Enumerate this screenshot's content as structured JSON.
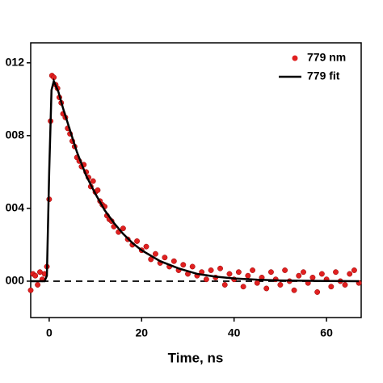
{
  "chart_data": {
    "type": "scatter",
    "xlabel": "Time, ns",
    "xlim": [
      -4,
      67.5
    ],
    "xticks": [
      0,
      20,
      40,
      60
    ],
    "ylim": [
      -0.002,
      0.0131
    ],
    "yticks": [
      {
        "value": 0,
        "label": "000"
      },
      {
        "value": 0.004,
        "label": "004"
      },
      {
        "value": 0.008,
        "label": "008"
      },
      {
        "value": 0.012,
        "label": "012"
      }
    ],
    "reference_line": {
      "value": 0,
      "style": "dashed"
    },
    "legend": "upper right",
    "series": [
      {
        "name": "779 nm",
        "type": "scatter",
        "color": "#e02020",
        "x": [
          -4,
          -3.5,
          -3,
          -2.5,
          -2,
          -1.5,
          -1,
          -0.5,
          0,
          0.3,
          0.6,
          1,
          1.4,
          1.8,
          2.2,
          2.6,
          3,
          3.5,
          4,
          4.5,
          5,
          5.5,
          6,
          6.5,
          7,
          7.5,
          8,
          8.5,
          9,
          9.5,
          10,
          10.5,
          11,
          11.5,
          12,
          12.5,
          13,
          13.5,
          14,
          15,
          16,
          17,
          18,
          19,
          20,
          21,
          22,
          23,
          24,
          25,
          26,
          27,
          28,
          29,
          30,
          31,
          32,
          33,
          34,
          35,
          36,
          37,
          38,
          39,
          40,
          41,
          42,
          43,
          44,
          45,
          46,
          47,
          48,
          49,
          50,
          51,
          52,
          53,
          54,
          55,
          56,
          57,
          58,
          59,
          60,
          61,
          62,
          63,
          64,
          65,
          66,
          67
        ],
        "values": [
          -0.0005,
          0.0004,
          0.0003,
          -0.0002,
          0.0005,
          0.0001,
          0.0004,
          0.0008,
          0.0045,
          0.0088,
          0.0113,
          0.0112,
          0.0108,
          0.0106,
          0.0101,
          0.0098,
          0.0092,
          0.009,
          0.0084,
          0.0081,
          0.0077,
          0.0074,
          0.0068,
          0.0066,
          0.0063,
          0.0064,
          0.006,
          0.0057,
          0.0052,
          0.0055,
          0.0049,
          0.005,
          0.0044,
          0.0042,
          0.0041,
          0.0036,
          0.0034,
          0.0033,
          0.003,
          0.0027,
          0.0029,
          0.0023,
          0.002,
          0.0022,
          0.0017,
          0.0019,
          0.0012,
          0.0015,
          0.001,
          0.0013,
          0.0008,
          0.0011,
          0.0006,
          0.0009,
          0.0004,
          0.0008,
          0.0003,
          0.0005,
          0.0001,
          0.0006,
          0.0002,
          0.0007,
          -0.0002,
          0.0004,
          0.0001,
          0.0005,
          -0.0003,
          0.0003,
          0.0006,
          -0.0001,
          0.0002,
          -0.0004,
          0.0005,
          0.0001,
          -0.0002,
          0.0006,
          0,
          -0.0005,
          0.0003,
          0.0005,
          -0.0001,
          0.0002,
          -0.0006,
          0.0004,
          0.0001,
          -0.0003,
          0.0005,
          0,
          -0.0002,
          0.0004,
          0.0006,
          -0.0001
        ]
      },
      {
        "name": "779 fit",
        "type": "line",
        "color": "#000000",
        "x": [
          -4,
          -1,
          -0.5,
          0,
          0.5,
          1,
          2,
          3,
          4,
          5,
          6,
          8,
          10,
          12,
          14,
          16,
          18,
          20,
          24,
          28,
          32,
          36,
          40,
          45,
          50,
          60,
          67
        ],
        "values": [
          0,
          0,
          0.0003,
          0.006,
          0.0105,
          0.011,
          0.0104,
          0.0095,
          0.0087,
          0.0079,
          0.0071,
          0.0058,
          0.0048,
          0.0039,
          0.0032,
          0.0026,
          0.0021,
          0.0017,
          0.0011,
          0.0007,
          0.0004,
          0.00025,
          0.00015,
          8e-05,
          4e-05,
          1e-05,
          0
        ]
      }
    ]
  }
}
